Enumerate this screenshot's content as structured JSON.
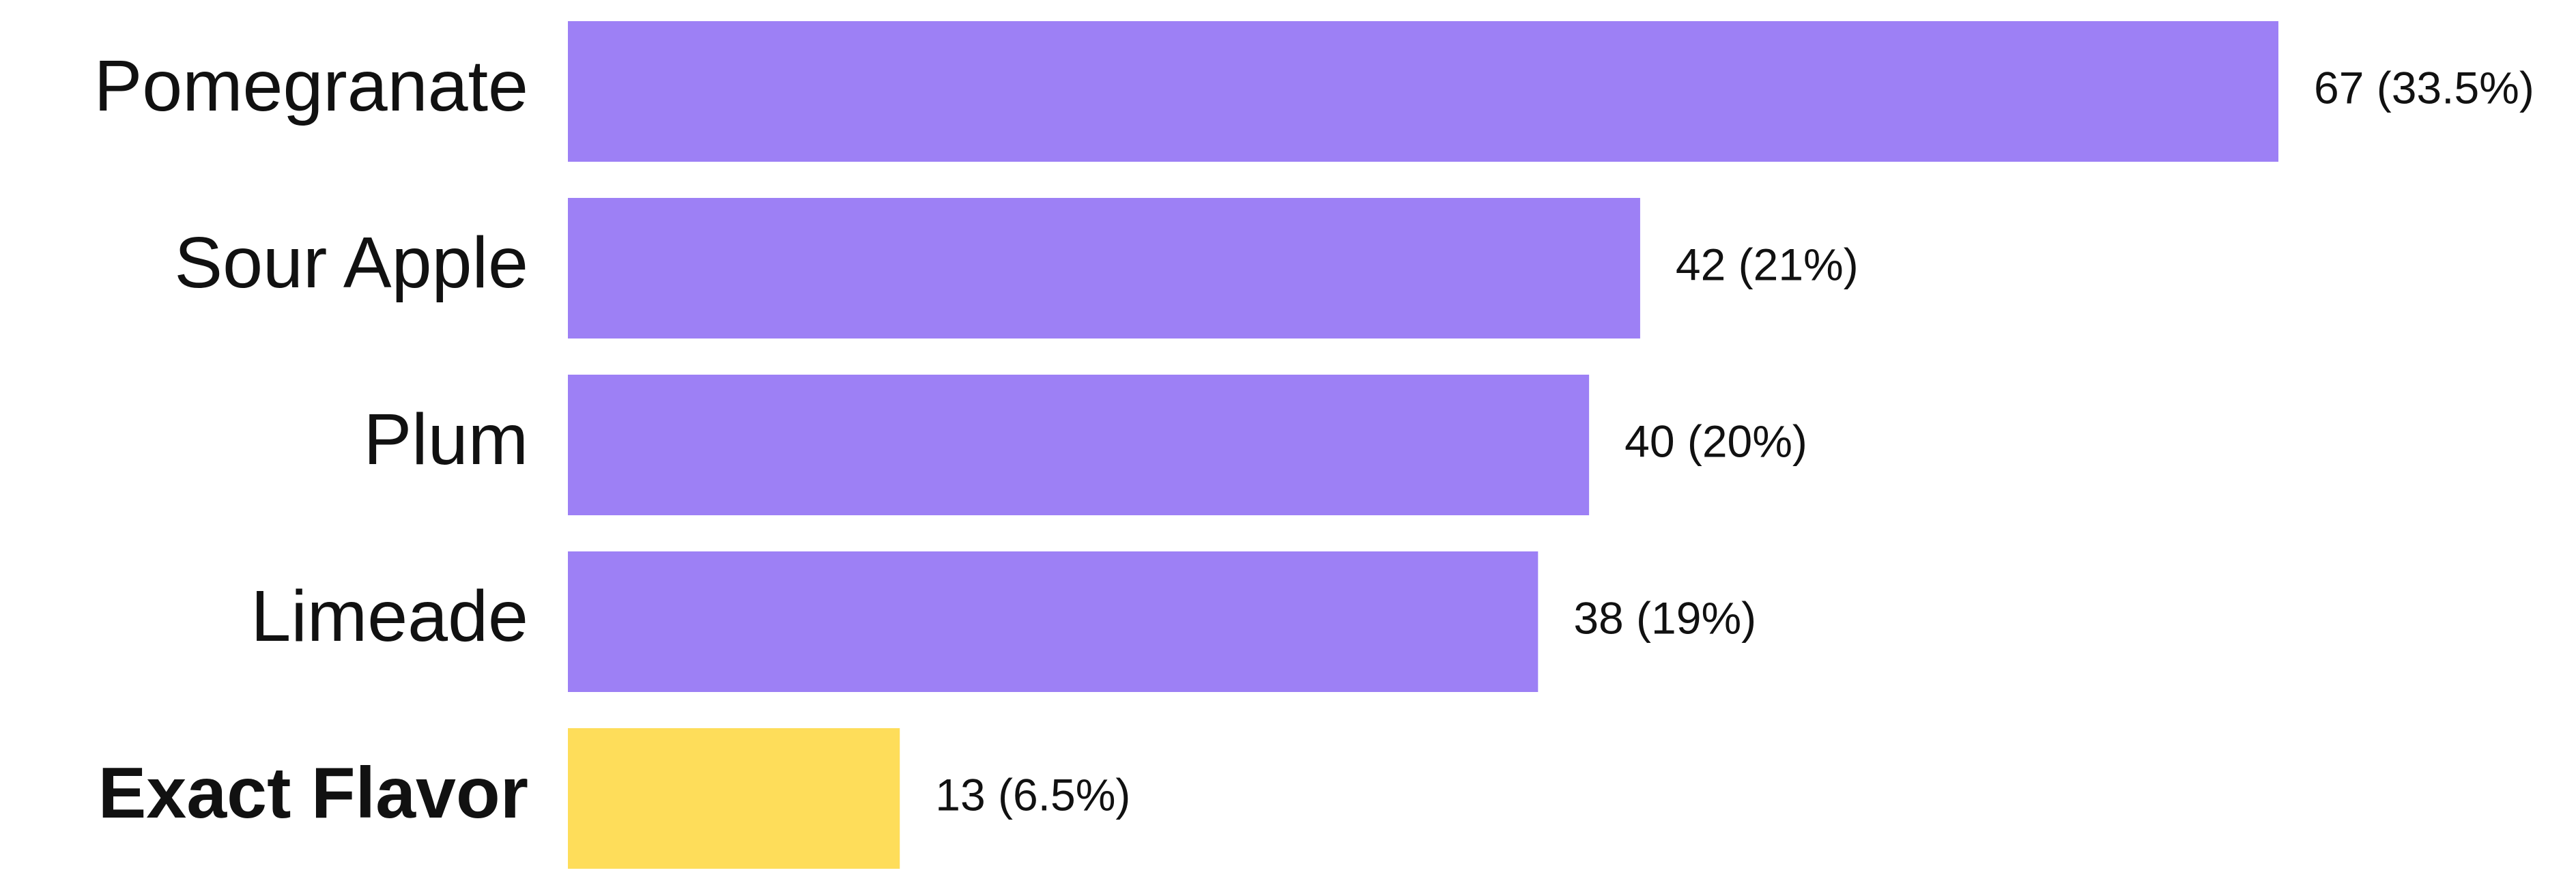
{
  "chart_data": {
    "type": "bar",
    "orientation": "horizontal",
    "categories": [
      "Pomegranate",
      "Sour Apple",
      "Plum",
      "Limeade",
      "Exact Flavor"
    ],
    "values": [
      67,
      42,
      40,
      38,
      13
    ],
    "value_labels": [
      "67 (33.5%)",
      "42 (21%)",
      "40 (20%)",
      "38 (19%)",
      "13 (6.5%)"
    ],
    "colors": [
      "#9d80f5",
      "#9d80f5",
      "#9d80f5",
      "#9d80f5",
      "#fedd5a"
    ],
    "bold_labels": [
      false,
      false,
      false,
      false,
      true
    ]
  }
}
